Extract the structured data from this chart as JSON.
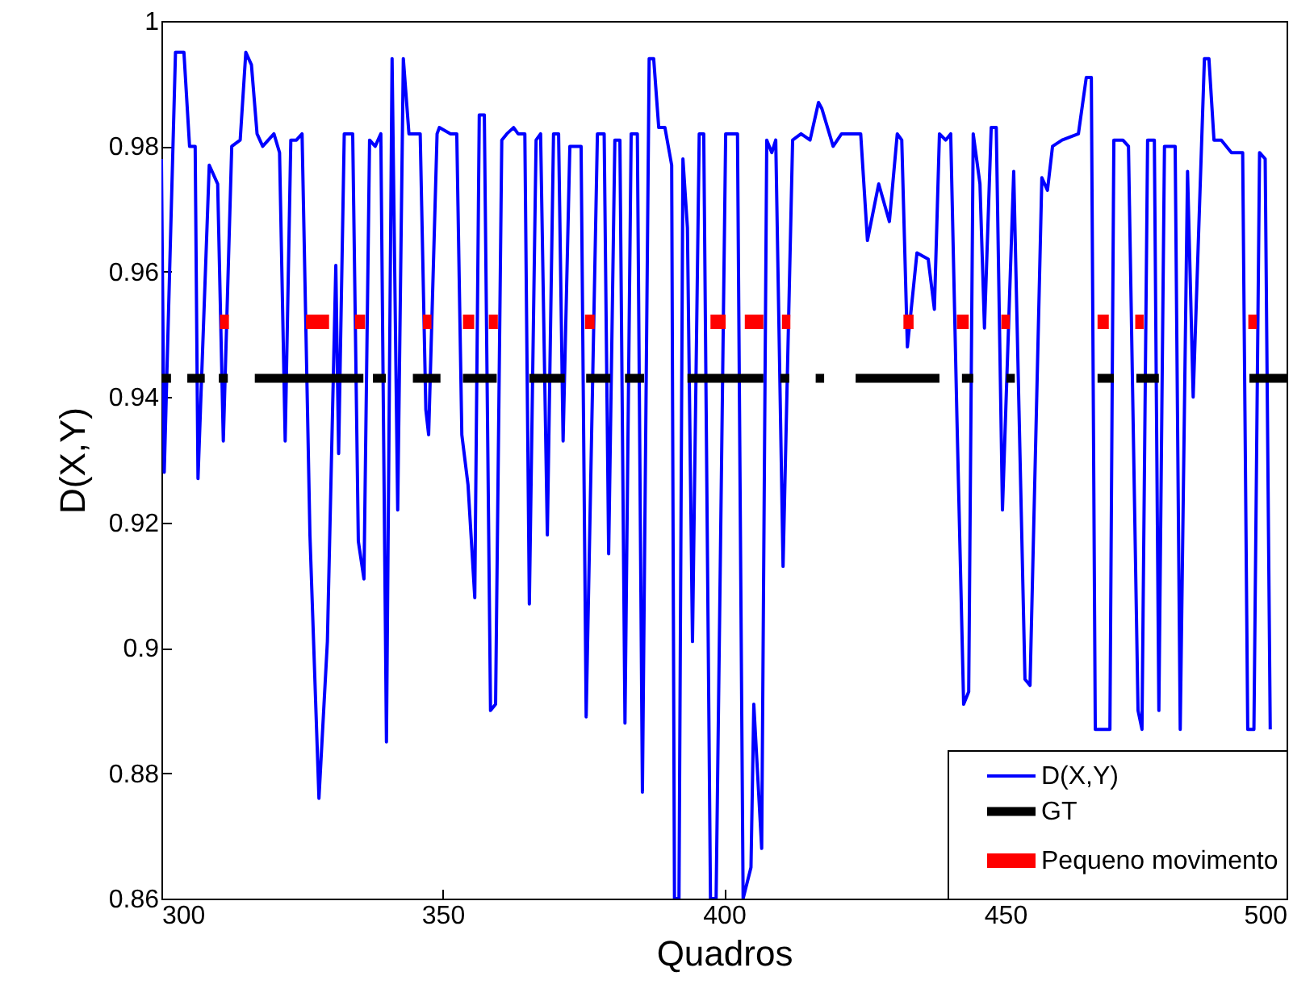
{
  "chart_data": {
    "type": "line",
    "xlabel": "Quadros",
    "ylabel": "D(X,Y)",
    "xlim": [
      300,
      500
    ],
    "xticks": [
      300,
      350,
      400,
      450,
      500
    ],
    "ylim": [
      0.86,
      1
    ],
    "yticks": [
      0.86,
      0.88,
      0.9,
      0.92,
      0.94,
      0.96,
      0.98,
      1
    ],
    "grid": false,
    "legend": "bottom right",
    "line_style": "solid",
    "series": [
      {
        "name": "D(X,Y)",
        "color": "#0000ff",
        "x": [
          300,
          300.5,
          302.5,
          304,
          305,
          306,
          306.5,
          308.5,
          310,
          311,
          312.5,
          314,
          315,
          316,
          317,
          318,
          320,
          321,
          322,
          323,
          324,
          325,
          326.4,
          328,
          329.5,
          331,
          331.5,
          332.5,
          334,
          335,
          336,
          337,
          338,
          339,
          340,
          341,
          342,
          343,
          344,
          346,
          347,
          347.5,
          349,
          349.4,
          351.4,
          352.5,
          353.4,
          354.5,
          355.7,
          356.5,
          357.4,
          358.5,
          359.4,
          360.5,
          361.4,
          362.6,
          363.4,
          364.6,
          365.4,
          366.6,
          367.4,
          368.6,
          369.7,
          370.6,
          371.4,
          372.6,
          374.6,
          375.5,
          377.5,
          378.7,
          379.5,
          380.6,
          381.5,
          382.4,
          383.5,
          384.6,
          385.5,
          386.7,
          387.5,
          388.4,
          389.5,
          390.7,
          391.2,
          392,
          392.7,
          393.5,
          394.4,
          395.6,
          396.4,
          397.6,
          398.6,
          400.3,
          401.5,
          402.4,
          403.4,
          404.8,
          405.3,
          406.7,
          407.6,
          408.5,
          409.2,
          410.5,
          412.2,
          413.7,
          415.3,
          416.8,
          417.4,
          419.4,
          420.9,
          424.3,
          425.5,
          427.5,
          429.4,
          430.8,
          431.6,
          432.6,
          434.3,
          436.3,
          437.4,
          438.3,
          439.4,
          440.3,
          441.4,
          442.6,
          443.5,
          444.3,
          445.5,
          446.3,
          447.5,
          448.4,
          449.5,
          451.5,
          453.5,
          454.4,
          456.5,
          457.5,
          458.4,
          460.1,
          463,
          464.4,
          465.3,
          466,
          468.6,
          469.3,
          470.9,
          471.9,
          473.6,
          474.3,
          475.3,
          476.5,
          477.3,
          478.3,
          479.3,
          480.2,
          481.1,
          482.4,
          483.4,
          485.4,
          486.2,
          487.1,
          488.4,
          490.2,
          491.4,
          492.2,
          493.1,
          494.2,
          495.2,
          496.2,
          497.1
        ],
        "values": [
          0.978,
          0.928,
          0.995,
          0.995,
          0.98,
          0.98,
          0.927,
          0.977,
          0.974,
          0.933,
          0.98,
          0.981,
          0.995,
          0.993,
          0.982,
          0.98,
          0.982,
          0.979,
          0.933,
          0.981,
          0.981,
          0.982,
          0.918,
          0.876,
          0.901,
          0.961,
          0.931,
          0.982,
          0.982,
          0.917,
          0.911,
          0.981,
          0.98,
          0.982,
          0.885,
          0.994,
          0.922,
          0.994,
          0.982,
          0.982,
          0.938,
          0.934,
          0.982,
          0.983,
          0.982,
          0.982,
          0.934,
          0.926,
          0.908,
          0.985,
          0.985,
          0.89,
          0.891,
          0.981,
          0.982,
          0.983,
          0.982,
          0.982,
          0.907,
          0.981,
          0.982,
          0.918,
          0.982,
          0.982,
          0.933,
          0.98,
          0.98,
          0.889,
          0.982,
          0.982,
          0.915,
          0.981,
          0.981,
          0.888,
          0.982,
          0.982,
          0.877,
          0.994,
          0.994,
          0.983,
          0.983,
          0.977,
          0.86,
          0.86,
          0.978,
          0.967,
          0.901,
          0.982,
          0.982,
          0.86,
          0.86,
          0.982,
          0.982,
          0.982,
          0.86,
          0.865,
          0.891,
          0.868,
          0.981,
          0.979,
          0.981,
          0.913,
          0.981,
          0.982,
          0.981,
          0.987,
          0.986,
          0.98,
          0.982,
          0.982,
          0.965,
          0.974,
          0.968,
          0.982,
          0.981,
          0.948,
          0.963,
          0.962,
          0.954,
          0.982,
          0.981,
          0.982,
          0.937,
          0.891,
          0.893,
          0.982,
          0.974,
          0.951,
          0.983,
          0.983,
          0.922,
          0.976,
          0.895,
          0.894,
          0.975,
          0.973,
          0.98,
          0.981,
          0.982,
          0.991,
          0.991,
          0.887,
          0.887,
          0.981,
          0.981,
          0.98,
          0.89,
          0.887,
          0.981,
          0.981,
          0.89,
          0.98,
          0.98,
          0.98,
          0.887,
          0.976,
          0.94,
          0.994,
          0.994,
          0.981,
          0.981,
          0.979,
          0.979,
          0.979,
          0.887,
          0.887,
          0.979,
          0.978,
          0.887
        ]
      },
      {
        "name": "GT",
        "color": "#000000",
        "x": [
          300,
          301.7,
          303,
          304.6,
          307.7,
          309,
          310.2,
          311.8,
          314,
          316.6,
          335.9,
          336.8,
          337.6,
          339.9,
          342,
          344.7,
          349.6,
          351,
          353.6,
          359.6,
          362,
          365.4,
          371.7,
          373,
          375.5,
          379.8,
          381,
          382.4,
          385.8,
          390,
          393.5,
          407,
          408,
          410,
          411.6,
          414,
          416.3,
          417.8,
          420,
          423.4,
          438.3,
          440,
          442.3,
          444.3,
          447,
          450.2,
          451.7,
          459,
          466.4,
          469.3,
          471,
          473.3,
          477.3,
          485,
          493.4,
          500
        ],
        "values": [
          0.943,
          0.943,
          null,
          0.943,
          0.943,
          null,
          0.943,
          0.943,
          null,
          0.943,
          0.943,
          null,
          0.943,
          0.943,
          null,
          0.943,
          0.943,
          null,
          0.943,
          0.943,
          null,
          0.943,
          0.943,
          null,
          0.943,
          0.943,
          null,
          0.943,
          0.943,
          null,
          0.943,
          0.943,
          null,
          0.943,
          0.943,
          null,
          0.943,
          0.943,
          null,
          0.943,
          0.943,
          null,
          0.943,
          0.943,
          null,
          0.943,
          0.943,
          null,
          0.943,
          0.943,
          null,
          0.943,
          0.943,
          null,
          0.943,
          0.943
        ]
      },
      {
        "name": "Pequeno movimento",
        "color": "#ff0000",
        "x": [
          310.4,
          312,
          318,
          325.7,
          329.8,
          332,
          334.4,
          336.2,
          340,
          346.5,
          348,
          350,
          353.6,
          355.6,
          357,
          358.2,
          359.8,
          365,
          375.3,
          377,
          385,
          397.6,
          400.3,
          402,
          403.7,
          407,
          409,
          410.3,
          411.8,
          420,
          431.9,
          433.7,
          437,
          441.4,
          443.5,
          446,
          449.3,
          450.8,
          460,
          466.4,
          468.4,
          471,
          473.1,
          474.6,
          485,
          493.2,
          494.7
        ],
        "values": [
          0.952,
          0.952,
          null,
          0.952,
          0.952,
          null,
          0.952,
          0.952,
          null,
          0.952,
          0.952,
          null,
          0.952,
          0.952,
          null,
          0.952,
          0.952,
          null,
          0.952,
          0.952,
          null,
          0.952,
          0.952,
          null,
          0.952,
          0.952,
          null,
          0.952,
          0.952,
          null,
          0.952,
          0.952,
          null,
          0.952,
          0.952,
          null,
          0.952,
          0.952,
          null,
          0.952,
          0.952,
          null,
          0.952,
          0.952,
          null,
          0.952,
          0.952
        ]
      }
    ]
  }
}
